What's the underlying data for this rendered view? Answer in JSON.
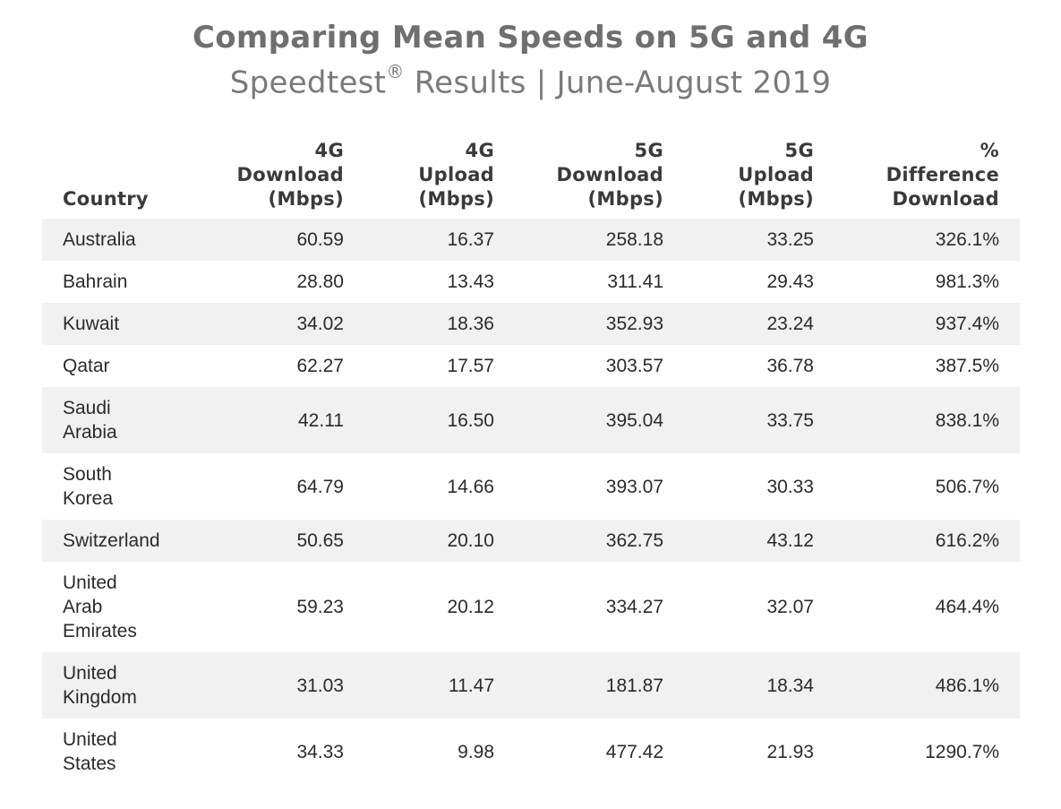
{
  "title": "Comparing Mean Speeds on 5G and 4G",
  "subtitle": {
    "prefix": "Speedtest",
    "mark": "®",
    "suffix": " Results | June-August 2019"
  },
  "chart_data": {
    "type": "table",
    "title": "Comparing Mean Speeds on 5G and 4G",
    "subtitle": "Speedtest® Results | June-August 2019",
    "columns": [
      "Country",
      "4G Download (Mbps)",
      "4G Upload (Mbps)",
      "5G Download (Mbps)",
      "5G Upload (Mbps)",
      "% Difference Download"
    ],
    "rows": [
      [
        "Australia",
        "60.59",
        "16.37",
        "258.18",
        "33.25",
        "326.1%"
      ],
      [
        "Bahrain",
        "28.80",
        "13.43",
        "311.41",
        "29.43",
        "981.3%"
      ],
      [
        "Kuwait",
        "34.02",
        "18.36",
        "352.93",
        "23.24",
        "937.4%"
      ],
      [
        "Qatar",
        "62.27",
        "17.57",
        "303.57",
        "36.78",
        "387.5%"
      ],
      [
        "Saudi Arabia",
        "42.11",
        "16.50",
        "395.04",
        "33.75",
        "838.1%"
      ],
      [
        "South Korea",
        "64.79",
        "14.66",
        "393.07",
        "30.33",
        "506.7%"
      ],
      [
        "Switzerland",
        "50.65",
        "20.10",
        "362.75",
        "43.12",
        "616.2%"
      ],
      [
        "United Arab Emirates",
        "59.23",
        "20.12",
        "334.27",
        "32.07",
        "464.4%"
      ],
      [
        "United Kingdom",
        "31.03",
        "11.47",
        "181.87",
        "18.34",
        "486.1%"
      ],
      [
        "United States",
        "34.33",
        "9.98",
        "477.42",
        "21.93",
        "1290.7%"
      ]
    ],
    "row_shading": "alternating, starting shaded",
    "shade_color": "#f1f1f1",
    "text_color": "#2b2b2b",
    "title_color": "#6f6f6f"
  }
}
